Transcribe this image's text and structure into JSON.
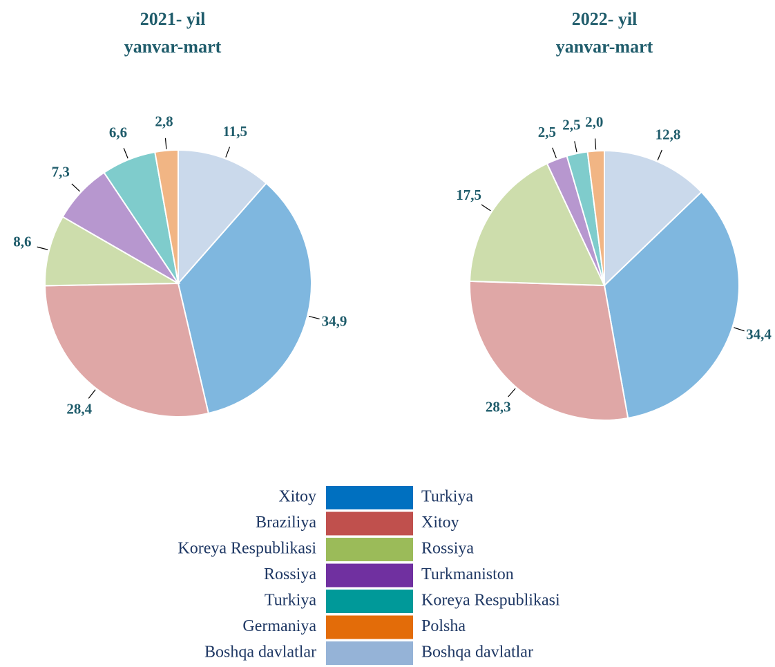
{
  "chart_data": [
    {
      "type": "pie",
      "title": "2021- yil",
      "subtitle": "yanvar-mart",
      "categories": [
        "Xitoy",
        "Braziliya",
        "Koreya Respublikasi",
        "Rossiya",
        "Turkiya",
        "Germaniya",
        "Boshqa davlatlar"
      ],
      "values": [
        34.9,
        28.4,
        8.6,
        7.3,
        6.6,
        2.8,
        11.5
      ],
      "value_labels": [
        "34,9",
        "28,4",
        "8,6",
        "7,3",
        "6,6",
        "2,8",
        "11,5"
      ],
      "colors": [
        "#0070c0",
        "#c0504d",
        "#9bbb59",
        "#7030a0",
        "#009999",
        "#e36c09",
        "#95b3d7"
      ]
    },
    {
      "type": "pie",
      "title": "2022- yil",
      "subtitle": "yanvar-mart",
      "categories": [
        "Turkiya",
        "Xitoy",
        "Rossiya",
        "Turkmaniston",
        "Koreya Respublikasi",
        "Polsha",
        "Boshqa davlatlar"
      ],
      "values": [
        34.4,
        28.3,
        17.5,
        2.5,
        2.5,
        2.0,
        12.8
      ],
      "value_labels": [
        "34,4",
        "28,3",
        "17,5",
        "2,5",
        "2,5",
        "2,0",
        "12,8"
      ],
      "colors": [
        "#0070c0",
        "#c0504d",
        "#9bbb59",
        "#7030a0",
        "#009999",
        "#e36c09",
        "#95b3d7"
      ]
    }
  ]
}
